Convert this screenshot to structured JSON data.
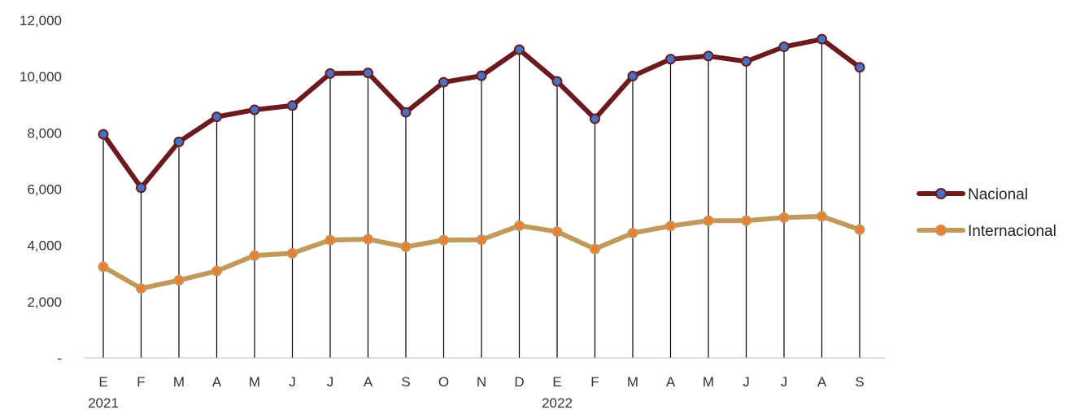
{
  "chart_data": {
    "type": "line",
    "categories": [
      "E",
      "F",
      "M",
      "A",
      "M",
      "J",
      "J",
      "A",
      "S",
      "O",
      "N",
      "D",
      "E",
      "F",
      "M",
      "A",
      "M",
      "J",
      "J",
      "A",
      "S"
    ],
    "year_labels": [
      {
        "label": "2021",
        "index": 0
      },
      {
        "label": "2022",
        "index": 12
      }
    ],
    "ylim": [
      0,
      12000
    ],
    "yticks": [
      0,
      2000,
      4000,
      6000,
      8000,
      10000,
      12000
    ],
    "ytick_labels": [
      "-",
      "2,000",
      "4,000",
      "6,000",
      "8,000",
      "10,000",
      "12,000"
    ],
    "drop_lines": true,
    "grid": false,
    "legend_position": "right",
    "series": [
      {
        "name": "Nacional",
        "line_color": "#6b1a1f",
        "marker_color": "#4472c4",
        "values": [
          7950,
          6050,
          7680,
          8570,
          8820,
          8970,
          10110,
          10130,
          8730,
          9800,
          10030,
          10960,
          9830,
          8500,
          10020,
          10620,
          10730,
          10540,
          11060,
          11330,
          10330
        ]
      },
      {
        "name": "Internacional",
        "line_color": "#c19a5b",
        "marker_color": "#ed7d31",
        "values": [
          3240,
          2470,
          2760,
          3090,
          3640,
          3720,
          4190,
          4220,
          3950,
          4190,
          4200,
          4700,
          4490,
          3870,
          4440,
          4690,
          4880,
          4880,
          4990,
          5030,
          4560
        ]
      }
    ]
  }
}
